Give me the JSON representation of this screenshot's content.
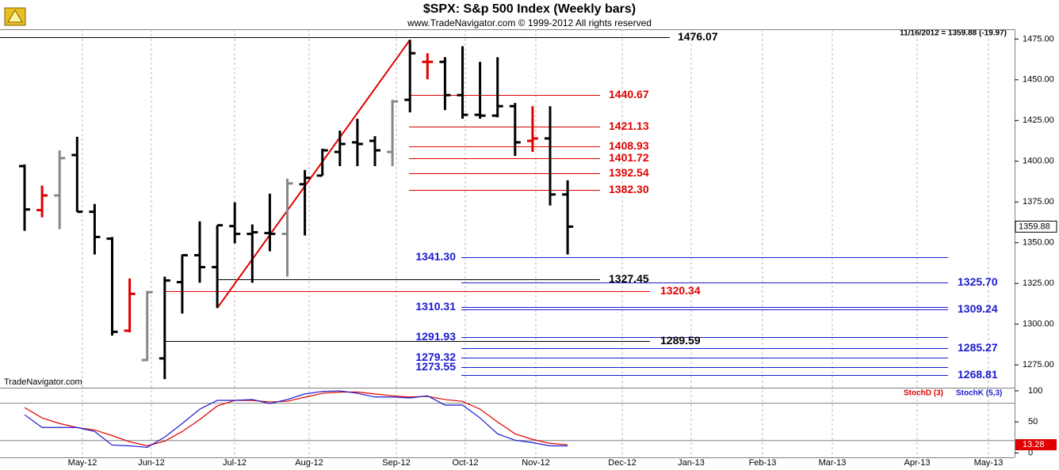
{
  "chart_data": [
    {
      "type": "ohlc",
      "title": "$SPX:  S&p 500 Index  (Weekly bars)",
      "subtitle": "www.TradeNavigator.com © 1999-2012 All rights reserved",
      "info": "11/16/2012 = 1359.88 (-19.97)",
      "watermark": "TradeNavigator.com",
      "xticks": [
        "May-12",
        "Jun-12",
        "Jul-12",
        "Aug-12",
        "Sep-12",
        "Oct-12",
        "Nov-12",
        "Dec-12",
        "Jan-13",
        "Feb-13",
        "Mar-13",
        "Apr-13",
        "May-13"
      ],
      "ylim": [
        1261,
        1481
      ],
      "yticks": [
        {
          "value": 1275,
          "label": "1275.00"
        },
        {
          "value": 1300,
          "label": "1300.00"
        },
        {
          "value": 1325,
          "label": "1325.00"
        },
        {
          "value": 1350,
          "label": "1350.00"
        },
        {
          "value": 1375,
          "label": "1375.00"
        },
        {
          "value": 1400,
          "label": "1400.00"
        },
        {
          "value": 1425,
          "label": "1425.00"
        },
        {
          "value": 1450,
          "label": "1450.00"
        },
        {
          "value": 1475,
          "label": "1475.00"
        }
      ],
      "grid": true,
      "open": [
        1397,
        1370,
        1379,
        1403.8,
        1369,
        1352.5,
        1296,
        1278,
        1279,
        1325.8,
        1342.3,
        1335,
        1360.2,
        1355.4,
        1355.9,
        1355.4,
        1385.9,
        1391.2,
        1405.7,
        1411.6,
        1412.5,
        1405.7,
        1437.7,
        1461,
        1461,
        1440.6,
        1428.5,
        1428,
        1433.8,
        1412.5,
        1414,
        1379.6
      ],
      "high": [
        1398,
        1385,
        1406.7,
        1415,
        1373.8,
        1353.5,
        1328,
        1320.5,
        1329.2,
        1342.8,
        1363.1,
        1360.7,
        1374.8,
        1361.2,
        1380.1,
        1389.3,
        1394.6,
        1407.7,
        1418.8,
        1426.1,
        1415.4,
        1437.7,
        1474.5,
        1466.3,
        1463.9,
        1470.6,
        1461,
        1463.9,
        1435.8,
        1433.8,
        1433.8,
        1388.3
      ],
      "low": [
        1357.3,
        1365.6,
        1358.3,
        1369,
        1342.8,
        1293,
        1295,
        1277.4,
        1266.3,
        1306.5,
        1325.4,
        1309.9,
        1349.6,
        1325.4,
        1344.7,
        1329.2,
        1354.4,
        1391.2,
        1397,
        1397,
        1397,
        1397,
        1430,
        1450.3,
        1431.4,
        1426.1,
        1426.1,
        1427,
        1403.3,
        1405.7,
        1372.8,
        1342.8
      ],
      "close": [
        1370.4,
        1379,
        1401.9,
        1369,
        1353.5,
        1295.3,
        1318.6,
        1319.6,
        1326.8,
        1342.3,
        1335,
        1360.7,
        1355.4,
        1356.4,
        1355.4,
        1386.4,
        1389.8,
        1406.7,
        1410.6,
        1410.6,
        1406.7,
        1436.7,
        1466.3,
        1461,
        1440.6,
        1428.5,
        1428,
        1433.8,
        1411.6,
        1414,
        1379.6,
        1359.88
      ],
      "bar_colors": [
        "#000000",
        "#e00000",
        "#888888",
        "#000000",
        "#000000",
        "#000000",
        "#e00000",
        "#888888",
        "#000000",
        "#000000",
        "#000000",
        "#000000",
        "#000000",
        "#000000",
        "#000000",
        "#888888",
        "#000000",
        "#000000",
        "#000000",
        "#000000",
        "#000000",
        "#888888",
        "#000000",
        "#e00000",
        "#000000",
        "#000000",
        "#000000",
        "#000000",
        "#000000",
        "#e00000",
        "#000000",
        "#000000"
      ],
      "trendline_color": "#e00000",
      "levels": [
        {
          "value": 1476.07,
          "label": "1476.07",
          "color": "#000000"
        },
        {
          "value": 1440.67,
          "label": "1440.67",
          "color": "#e00000"
        },
        {
          "value": 1421.13,
          "label": "1421.13",
          "color": "#e00000"
        },
        {
          "value": 1408.93,
          "label": "1408.93",
          "color": "#e00000"
        },
        {
          "value": 1401.72,
          "label": "1401.72",
          "color": "#e00000"
        },
        {
          "value": 1392.54,
          "label": "1392.54",
          "color": "#e00000"
        },
        {
          "value": 1382.3,
          "label": "1382.30",
          "color": "#e00000"
        },
        {
          "value": 1341.3,
          "label": "1341.30",
          "color": "#1a1ad0"
        },
        {
          "value": 1327.45,
          "label": "1327.45",
          "color": "#000000"
        },
        {
          "value": 1325.7,
          "label": "1325.70",
          "color": "#1a1ad0"
        },
        {
          "value": 1320.34,
          "label": "1320.34",
          "color": "#e00000"
        },
        {
          "value": 1310.31,
          "label": "1310.31",
          "color": "#1a1ad0"
        },
        {
          "value": 1309.24,
          "label": "1309.24",
          "color": "#1a1ad0"
        },
        {
          "value": 1291.93,
          "label": "1291.93",
          "color": "#1a1ad0"
        },
        {
          "value": 1289.59,
          "label": "1289.59",
          "color": "#000000"
        },
        {
          "value": 1285.27,
          "label": "1285.27",
          "color": "#1a1ad0"
        },
        {
          "value": 1279.32,
          "label": "1279.32",
          "color": "#1a1ad0"
        },
        {
          "value": 1273.55,
          "label": "1273.55",
          "color": "#1a1ad0"
        },
        {
          "value": 1268.81,
          "label": "1268.81",
          "color": "#1a1ad0"
        }
      ]
    },
    {
      "type": "line",
      "ylim": [
        -7,
        105
      ],
      "yticks": [
        0,
        50,
        100
      ],
      "guides": [
        20,
        80
      ],
      "series": [
        {
          "name": "StochD (3)",
          "color": "#e00000",
          "values": [
            73,
            56.4,
            47.4,
            41,
            37,
            28,
            18,
            11.5,
            19,
            34.6,
            53.8,
            75.6,
            84.6,
            84.6,
            82,
            83.3,
            89.7,
            96,
            98,
            98,
            95,
            92,
            90,
            91,
            86,
            83,
            70.5,
            50,
            30.8,
            21.8,
            15.4,
            13.28
          ],
          "value_labels": {
            "31": "13.28"
          }
        },
        {
          "name": "StochK (5,3)",
          "color": "#1a1ad0",
          "values": [
            61.5,
            41,
            41,
            41,
            34.6,
            12.8,
            11.5,
            9,
            25.6,
            47.4,
            70.5,
            84.6,
            84.6,
            86,
            79.5,
            86,
            95,
            99,
            100,
            96,
            90,
            90,
            88.5,
            92,
            77,
            77,
            56.4,
            30.8,
            20.5,
            16.7,
            11.5,
            11.5
          ]
        }
      ]
    }
  ]
}
